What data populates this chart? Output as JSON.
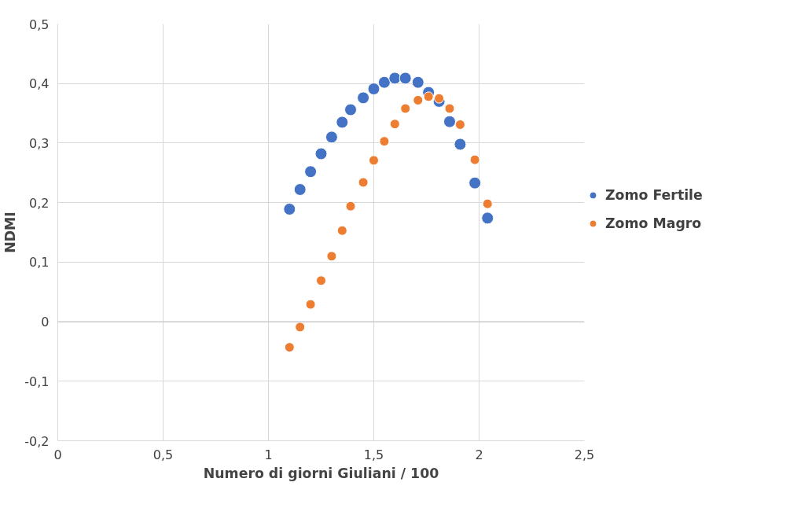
{
  "chart_data": {
    "type": "scatter",
    "xlabel": "Numero di giorni Giuliani / 100",
    "ylabel": "NDMI",
    "x": [
      1.1,
      1.15,
      1.2,
      1.25,
      1.3,
      1.35,
      1.39,
      1.45,
      1.5,
      1.55,
      1.6,
      1.65,
      1.71,
      1.76,
      1.81,
      1.86,
      1.91,
      1.98,
      2.04
    ],
    "series": [
      {
        "name": "Zomo Fertile",
        "color": "#4472c4",
        "values": [
          0.189,
          0.222,
          0.252,
          0.282,
          0.31,
          0.335,
          0.356,
          0.376,
          0.391,
          0.402,
          0.409,
          0.409,
          0.402,
          0.385,
          0.37,
          0.336,
          0.298,
          0.233,
          0.174
        ]
      },
      {
        "name": "Zomo Magro",
        "color": "#ed7d31",
        "values": [
          -0.043,
          -0.009,
          0.029,
          0.069,
          0.11,
          0.153,
          0.194,
          0.234,
          0.271,
          0.303,
          0.332,
          0.358,
          0.372,
          0.378,
          0.375,
          0.358,
          0.331,
          0.272,
          0.198
        ]
      }
    ],
    "xlim": [
      0,
      2.5
    ],
    "xticks": [
      {
        "value": 0,
        "label": "0"
      },
      {
        "value": 0.5,
        "label": "0,5"
      },
      {
        "value": 1,
        "label": "1"
      },
      {
        "value": 1.5,
        "label": "1,5"
      },
      {
        "value": 2,
        "label": "2"
      },
      {
        "value": 2.5,
        "label": "2,5"
      }
    ],
    "ylim": [
      -0.2,
      0.5
    ],
    "yticks": [
      {
        "value": -0.2,
        "label": "-0,2"
      },
      {
        "value": -0.1,
        "label": "-0,1"
      },
      {
        "value": 0,
        "label": "0"
      },
      {
        "value": 0.1,
        "label": "0,1"
      },
      {
        "value": 0.2,
        "label": "0,2"
      },
      {
        "value": 0.3,
        "label": "0,3"
      },
      {
        "value": 0.4,
        "label": "0,4"
      },
      {
        "value": 0.5,
        "label": "0,5"
      }
    ],
    "grid": true,
    "legend": "right",
    "marker": "circle"
  }
}
